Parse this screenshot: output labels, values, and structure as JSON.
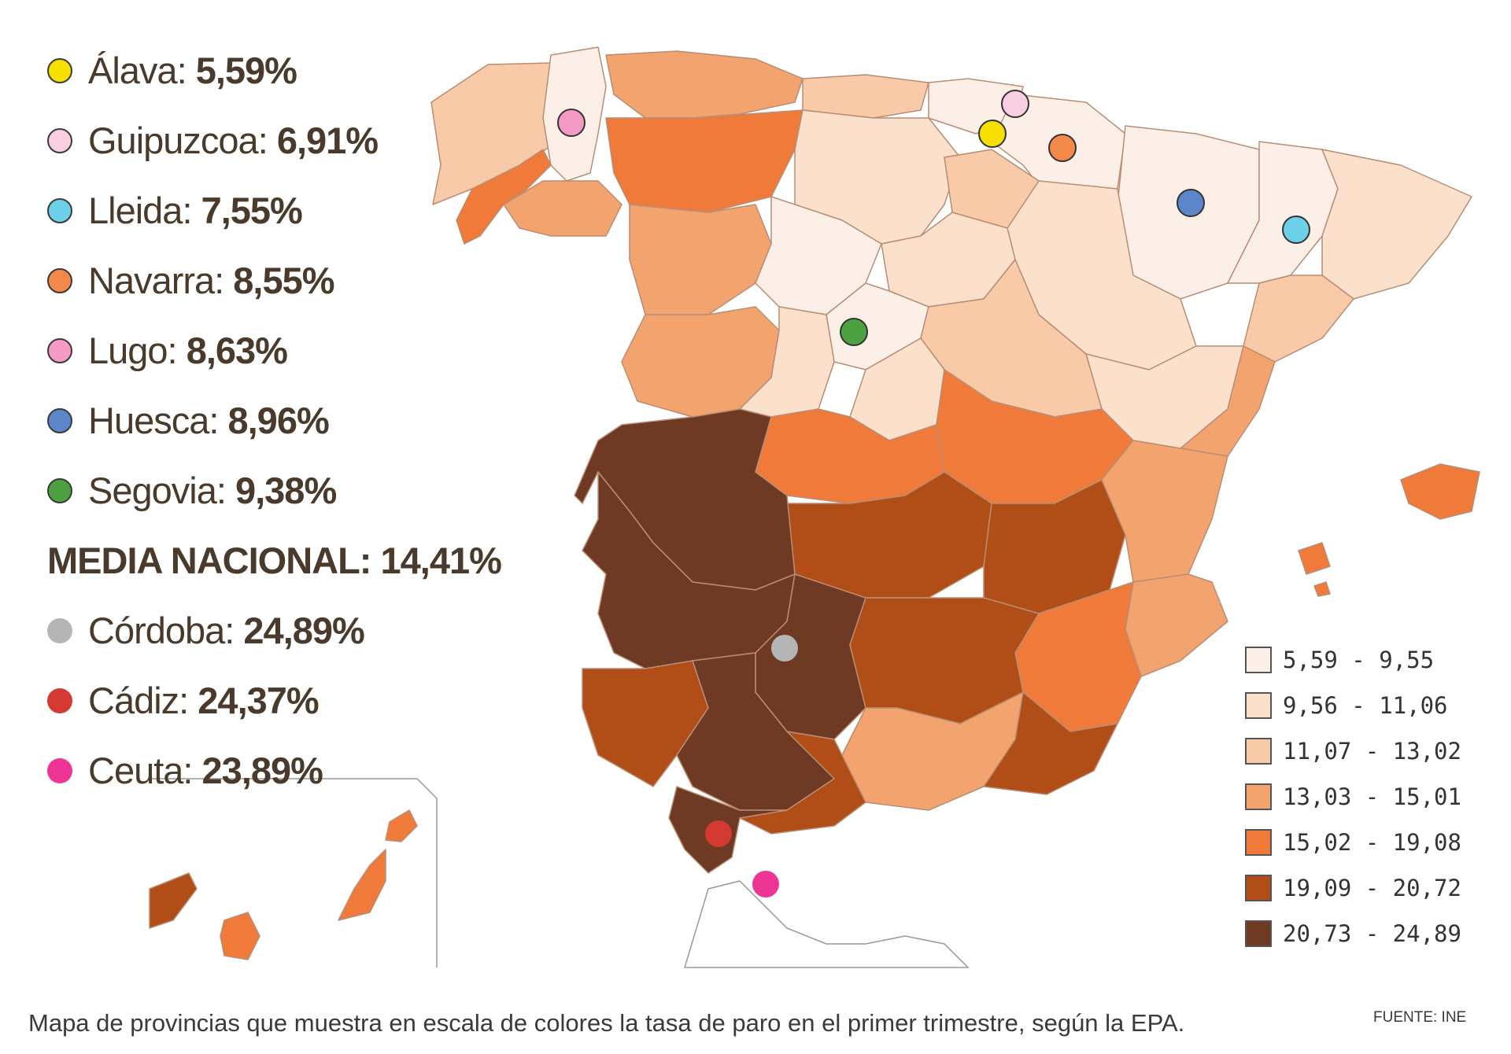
{
  "ranking": [
    {
      "name": "Álava:",
      "value": "5,59%",
      "color": "#f7e000"
    },
    {
      "name": "Guipuzcoa:",
      "value": "6,91%",
      "color": "#f7cfe0"
    },
    {
      "name": "Lleida:",
      "value": "7,55%",
      "color": "#6cd0e8"
    },
    {
      "name": "Navarra:",
      "value": "8,55%",
      "color": "#f2884a"
    },
    {
      "name": "Lugo:",
      "value": "8,63%",
      "color": "#f59ac4"
    },
    {
      "name": "Huesca:",
      "value": "8,96%",
      "color": "#5b86c9"
    },
    {
      "name": "Segovia:",
      "value": "9,38%",
      "color": "#4da140"
    }
  ],
  "national_average": "MEDIA NACIONAL: 14,41%",
  "ranking_high": [
    {
      "name": "Córdoba:",
      "value": "24,89%",
      "color": "#b5b5b5"
    },
    {
      "name": "Cádiz:",
      "value": "24,37%",
      "color": "#d53a32"
    },
    {
      "name": "Ceuta:",
      "value": "23,89%",
      "color": "#ee3596"
    }
  ],
  "legend": [
    {
      "label": "5,59 - 9,55",
      "color": "#fcefe8"
    },
    {
      "label": "9,56 - 11,06",
      "color": "#fbe0cc"
    },
    {
      "label": "11,07 - 13,02",
      "color": "#f8caa7"
    },
    {
      "label": "13,03 - 15,01",
      "color": "#f3a36d"
    },
    {
      "label": "15,02 - 19,08",
      "color": "#f07a3a"
    },
    {
      "label": "19,09 - 20,72",
      "color": "#b14e18"
    },
    {
      "label": "20,73 - 24,89",
      "color": "#6e3a24"
    }
  ],
  "caption": "Mapa de provincias que muestra en escala de colores la tasa de paro en el primer trimestre, según la EPA.",
  "source": "FUENTE: INE"
}
